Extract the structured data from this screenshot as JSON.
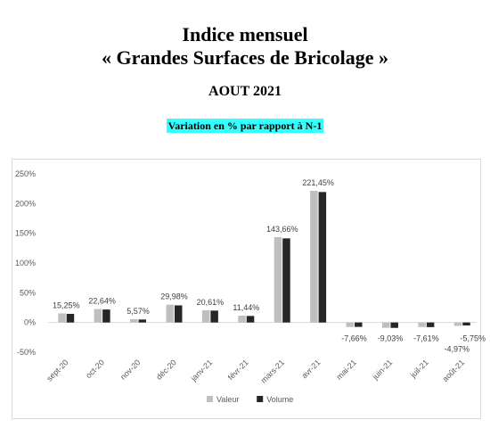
{
  "header": {
    "title_line1": "Indice mensuel",
    "title_line2": "« Grandes Surfaces de Bricolage »",
    "period": "AOUT 2021",
    "subtitle": "Variation en % par rapport à N-1"
  },
  "chart_data": {
    "type": "bar",
    "categories": [
      "sept-20",
      "oct-20",
      "nov-20",
      "déc-20",
      "janv-21",
      "févr-21",
      "mars-21",
      "avr-21",
      "mai-21",
      "juin-21",
      "juil-21",
      "août-21"
    ],
    "series": [
      {
        "name": "Valeur",
        "values": [
          15.25,
          22.64,
          5.57,
          29.98,
          20.61,
          11.44,
          143.66,
          221.45,
          -7.66,
          -9.03,
          -7.61,
          -5.75
        ],
        "color": "#bfbfbf"
      },
      {
        "name": "Volume",
        "values": [
          14.5,
          21.8,
          5.0,
          28.8,
          20.0,
          11.0,
          141.5,
          219.5,
          -7.4,
          -9.1,
          -7.8,
          -4.97
        ],
        "color": "#262626"
      }
    ],
    "data_labels": [
      "15,25%",
      "22,64%",
      "5,57%",
      "29,98%",
      "20,61%",
      "11,44%",
      "143,66%",
      "221,45%",
      "-7,66%",
      "-9,03%",
      "-7,61%",
      "-5,75%"
    ],
    "extra_label": "-4,97%",
    "yticks": [
      "250%",
      "200%",
      "150%",
      "100%",
      "50%",
      "0%",
      "-50%"
    ],
    "ylim": [
      -50,
      250
    ],
    "legend_position": "bottom",
    "grid": false
  }
}
